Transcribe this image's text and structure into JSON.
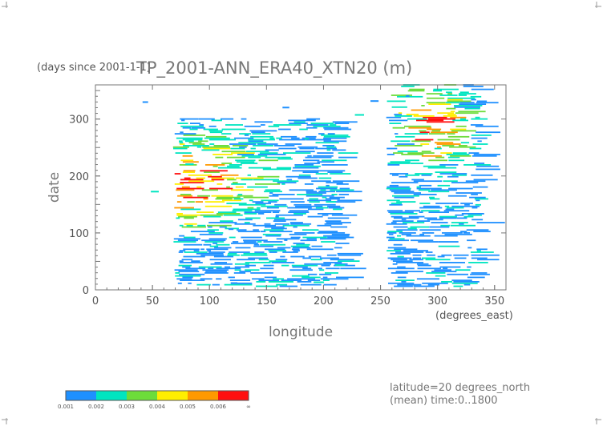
{
  "chart_data": {
    "type": "heatmap",
    "title": "TP_2001-ANN_ERA40_XTN20 (m)",
    "ylabel_units": "(days since 2001-1-1)",
    "ylabel": "date",
    "xlabel": "longitude",
    "xlabel_units": "(degrees_east)",
    "xlim": [
      0,
      360
    ],
    "ylim": [
      0,
      360
    ],
    "xticks": [
      "0",
      "50",
      "100",
      "150",
      "200",
      "250",
      "300",
      "350"
    ],
    "yticks": [
      "0",
      "100",
      "200",
      "300"
    ],
    "colorbar": {
      "labels": [
        "0.001",
        "0.002",
        "0.003",
        "0.004",
        "0.005",
        "0.006",
        "∞"
      ],
      "colors": [
        "#1e90ff",
        "#00e5c0",
        "#6ddc3a",
        "#ffee00",
        "#ff9900",
        "#ff1010"
      ]
    },
    "annotation": [
      "latitude=20 degrees_north",
      "(mean) time:0..1800"
    ]
  }
}
